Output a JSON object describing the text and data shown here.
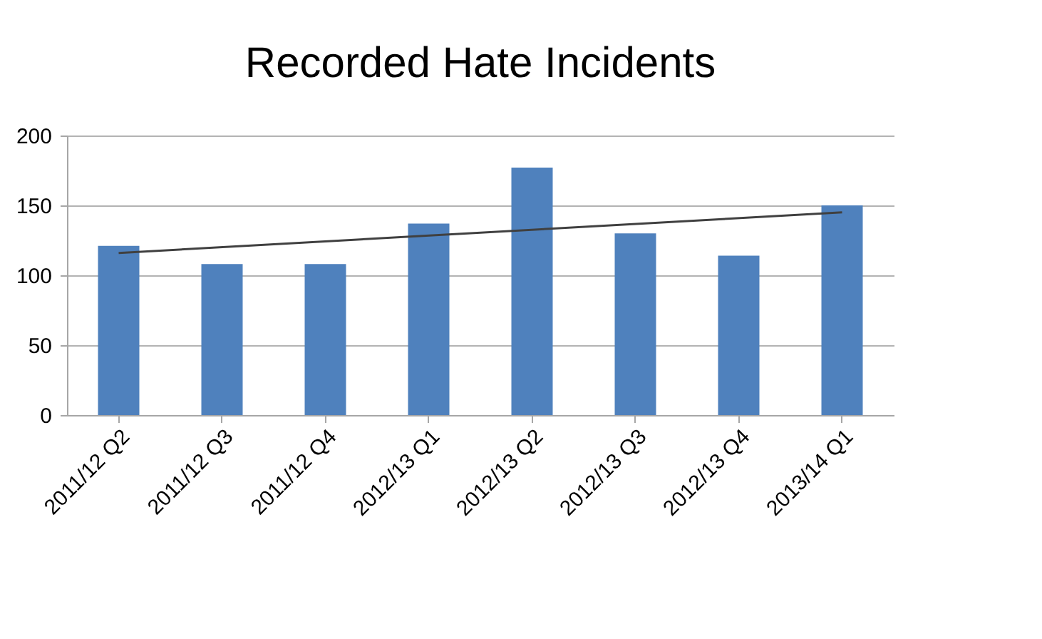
{
  "chart_data": {
    "type": "bar",
    "title": "Recorded Hate Incidents",
    "categories": [
      "2011/12 Q2",
      "2011/12 Q3",
      "2011/12 Q4",
      "2012/13 Q1",
      "2012/13 Q2",
      "2012/13 Q3",
      "2012/13 Q4",
      "2013/14 Q1"
    ],
    "series": [
      {
        "color": "#4f81bd",
        "values": [
          121,
          108,
          108,
          137,
          177,
          130,
          114,
          150
        ]
      },
      {
        "type": "line",
        "color": "#404040",
        "x": [
          "2011/12 Q2",
          "2013/14 Q1"
        ],
        "values": [
          116,
          145
        ]
      }
    ],
    "ylim": [
      0,
      200
    ],
    "yticks": [
      0,
      50,
      100,
      150,
      200
    ],
    "grid": "y"
  }
}
